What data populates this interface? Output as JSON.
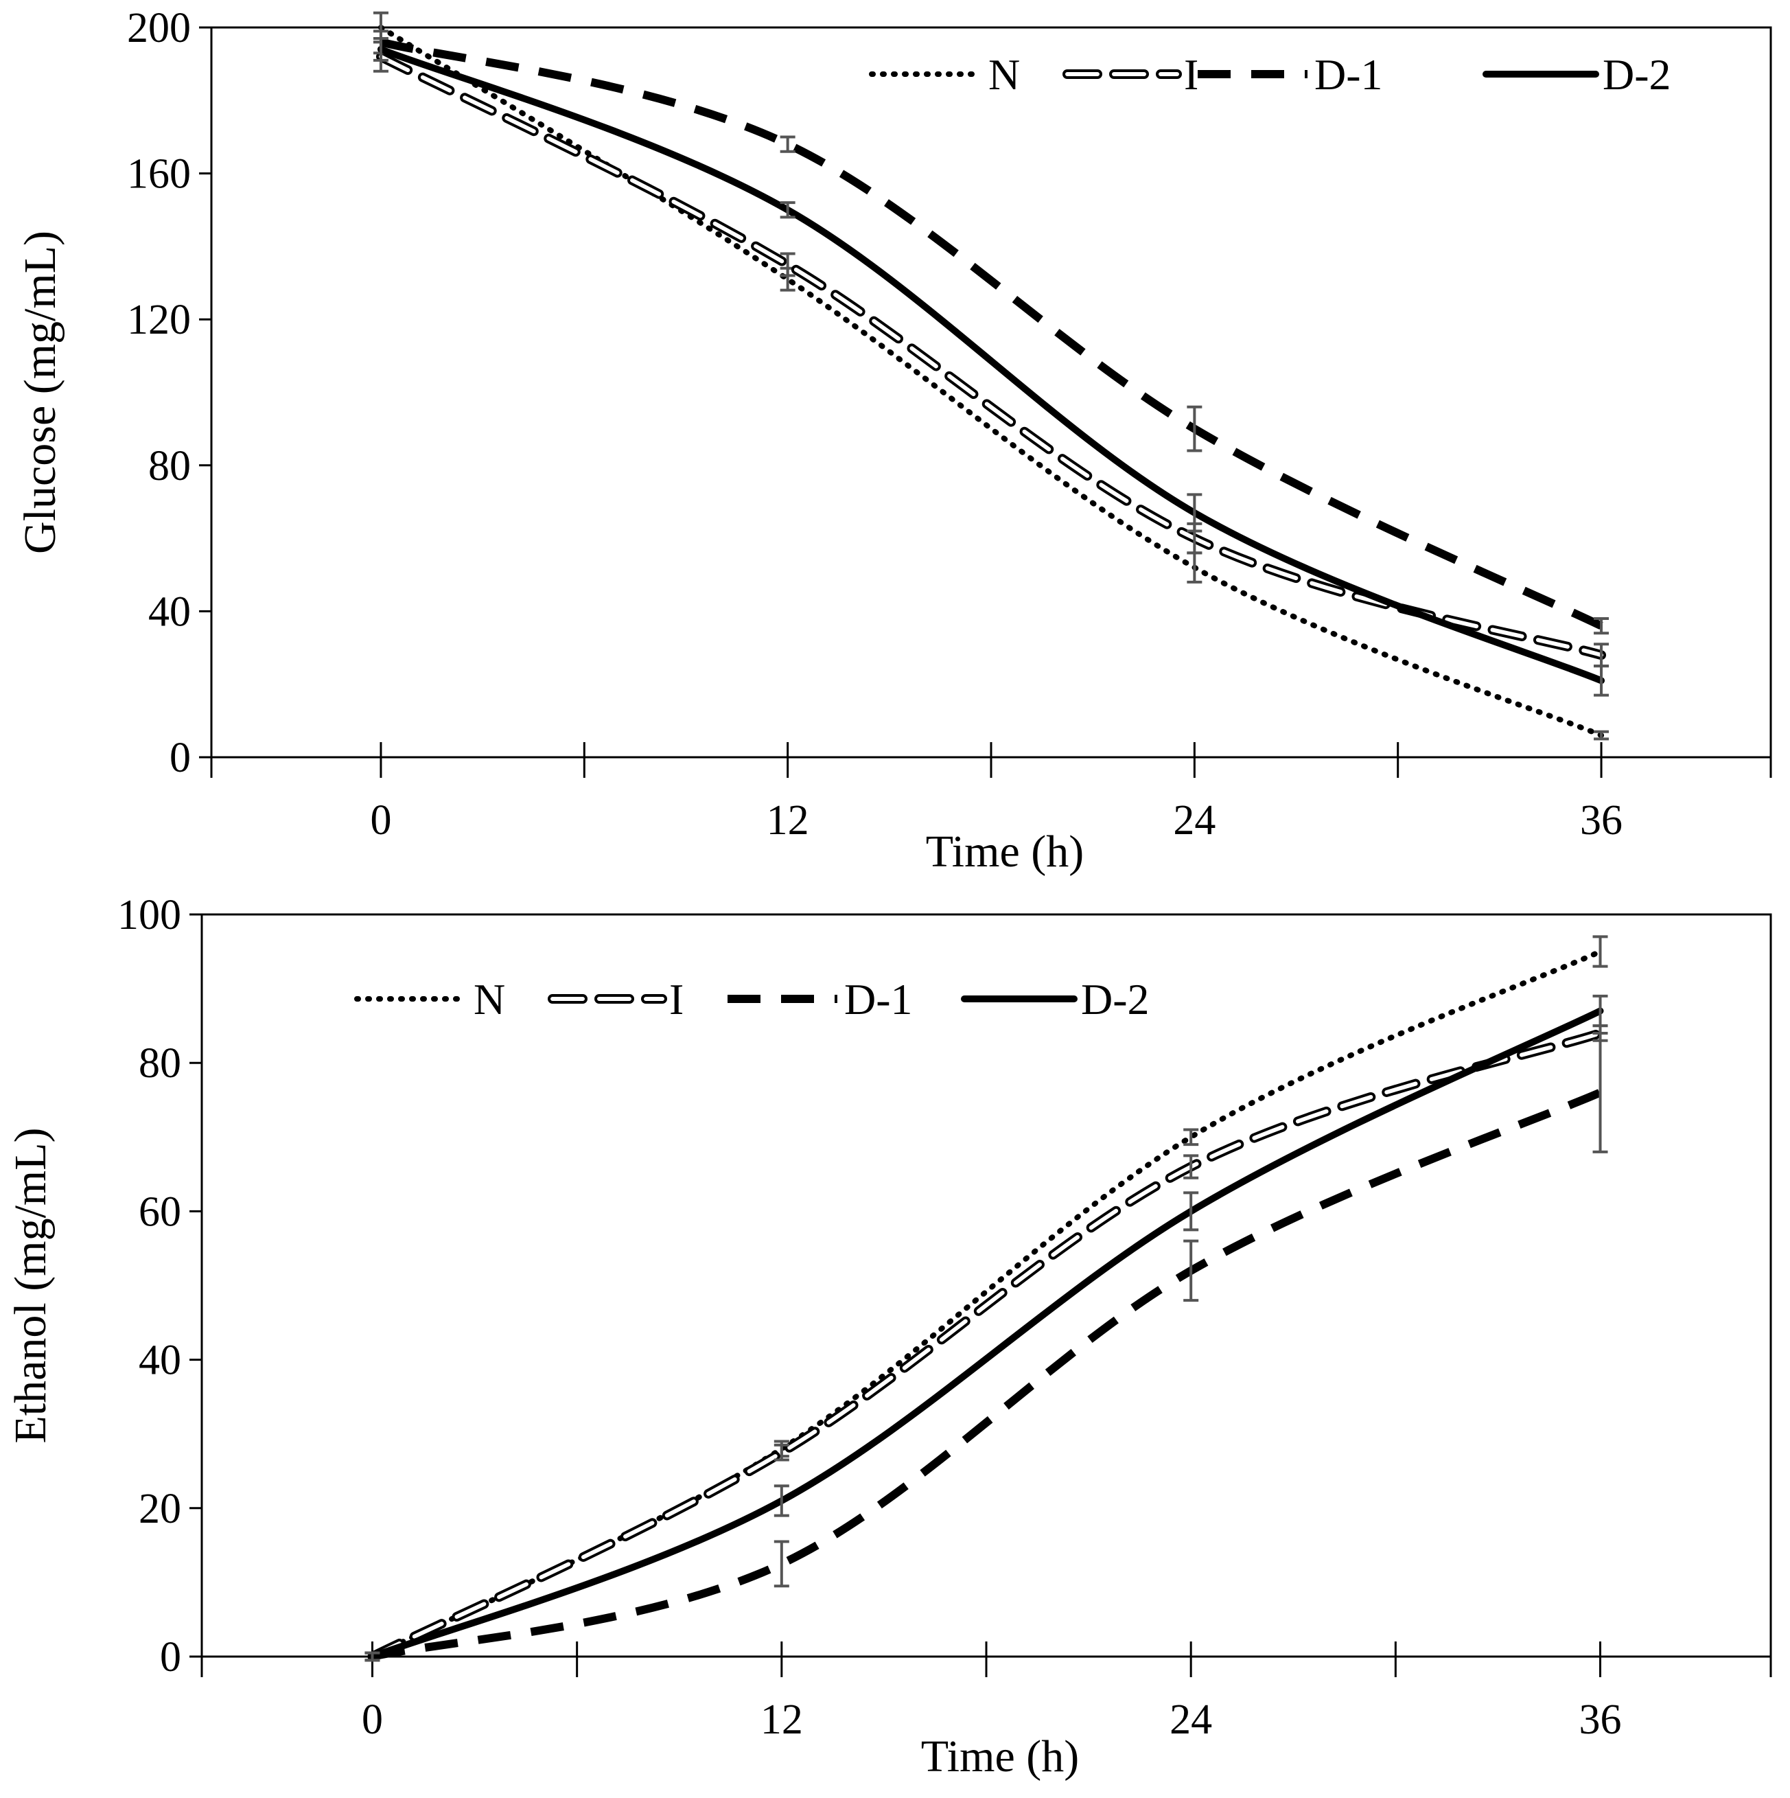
{
  "chart_data": [
    {
      "id": "glucose",
      "type": "line",
      "title": "",
      "xlabel": "Time (h)",
      "ylabel": "Glucose (mg/mL)",
      "xlim": [
        -5,
        41
      ],
      "ylim": [
        0,
        200
      ],
      "xticks": [
        0,
        12,
        24,
        36
      ],
      "yticks": [
        0,
        40,
        80,
        120,
        160,
        200
      ],
      "legend_position": "top-right",
      "x": [
        0,
        12,
        24,
        36
      ],
      "series": [
        {
          "name": "N",
          "style": "dotted",
          "values": [
            200,
            131,
            52,
            6
          ],
          "errors": [
            4,
            3,
            4,
            1
          ]
        },
        {
          "name": "I",
          "style": "hollow-dash",
          "values": [
            192,
            135,
            60,
            28
          ],
          "errors": [
            4,
            3,
            4,
            3
          ]
        },
        {
          "name": "D-1",
          "style": "dashed",
          "values": [
            196,
            168,
            90,
            36
          ],
          "errors": [
            3,
            2,
            6,
            2
          ]
        },
        {
          "name": "D-2",
          "style": "solid",
          "values": [
            194,
            150,
            67,
            21
          ],
          "errors": [
            3,
            2,
            5,
            4
          ]
        }
      ]
    },
    {
      "id": "ethanol",
      "type": "line",
      "title": "",
      "xlabel": "Time (h)",
      "ylabel": "Ethanol (mg/mL)",
      "xlim": [
        -5,
        41
      ],
      "ylim": [
        0,
        100
      ],
      "xticks": [
        0,
        12,
        24,
        36
      ],
      "yticks": [
        0,
        20,
        40,
        60,
        80,
        100
      ],
      "legend_position": "top-left",
      "x": [
        0,
        12,
        24,
        36
      ],
      "series": [
        {
          "name": "N",
          "style": "dotted",
          "values": [
            0,
            28,
            70,
            95
          ],
          "errors": [
            0.5,
            1,
            1,
            2
          ]
        },
        {
          "name": "I",
          "style": "hollow-dash",
          "values": [
            0,
            27.5,
            66,
            84
          ],
          "errors": [
            0.5,
            1,
            1.5,
            1
          ]
        },
        {
          "name": "D-1",
          "style": "dashed",
          "values": [
            0,
            12.5,
            52,
            76
          ],
          "errors": [
            0.5,
            3,
            4,
            8
          ]
        },
        {
          "name": "D-2",
          "style": "solid",
          "values": [
            0,
            21,
            60,
            87
          ],
          "errors": [
            0.5,
            2,
            2.5,
            2
          ]
        }
      ]
    }
  ]
}
